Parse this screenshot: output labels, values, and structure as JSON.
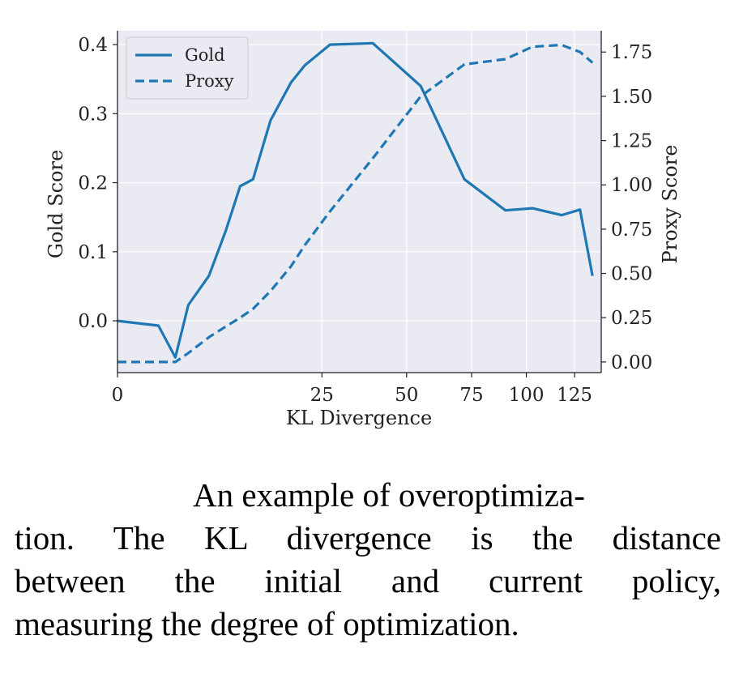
{
  "chart_data": {
    "type": "line",
    "xlabel": "KL Divergence",
    "ylabel_left": "Gold Score",
    "ylabel_right": "Proxy Score",
    "x_scale": "sqrt",
    "xlim": [
      0,
      140
    ],
    "ylim_left": [
      -0.075,
      0.42
    ],
    "ylim_right": [
      -0.06,
      1.87
    ],
    "x_ticks": [
      0,
      25,
      50,
      75,
      100,
      125
    ],
    "x_tick_labels": [
      "0",
      "25",
      "50",
      "75",
      "100",
      "125"
    ],
    "y_ticks_left": [
      0.0,
      0.1,
      0.2,
      0.3,
      0.4
    ],
    "y_tick_labels_left": [
      "0.0",
      "0.1",
      "0.2",
      "0.3",
      "0.4"
    ],
    "y_ticks_right": [
      0.0,
      0.25,
      0.5,
      0.75,
      1.0,
      1.25,
      1.5,
      1.75
    ],
    "y_tick_labels_right": [
      "0.00",
      "0.25",
      "0.50",
      "0.75",
      "1.00",
      "1.25",
      "1.50",
      "1.75"
    ],
    "grid": true,
    "legend_position": "top-left",
    "series": [
      {
        "name": "Gold",
        "axis": "left",
        "style": "solid",
        "color": "#1f77b4",
        "x": [
          0,
          1,
          2,
          3,
          5,
          7,
          9,
          11,
          14,
          18,
          21,
          27,
          39,
          55,
          72,
          90,
          103,
          118,
          128,
          135
        ],
        "y": [
          0.0,
          -0.007,
          -0.053,
          0.023,
          0.065,
          0.13,
          0.195,
          0.205,
          0.29,
          0.345,
          0.37,
          0.4,
          0.402,
          0.34,
          0.205,
          0.16,
          0.163,
          0.153,
          0.161,
          0.065
        ]
      },
      {
        "name": "Proxy",
        "axis": "right",
        "style": "dashed",
        "color": "#1f77b4",
        "x": [
          0,
          1,
          2,
          3,
          5,
          7,
          9,
          11,
          14,
          18,
          21,
          27,
          39,
          55,
          72,
          90,
          103,
          118,
          128,
          135
        ],
        "y": [
          0.0,
          0.0,
          0.0,
          0.05,
          0.14,
          0.2,
          0.25,
          0.3,
          0.4,
          0.54,
          0.66,
          0.85,
          1.15,
          1.5,
          1.68,
          1.71,
          1.78,
          1.79,
          1.75,
          1.69
        ]
      }
    ]
  },
  "caption": {
    "line1": "An example of overoptimiza-",
    "line2": "tion.  The KL divergence is the distance",
    "line3": "between the initial and current policy,",
    "line4": "measuring the degree of optimization."
  },
  "colors": {
    "line": "#1f77b4",
    "plot_background": "#eaeaf2",
    "grid": "#ffffff"
  }
}
